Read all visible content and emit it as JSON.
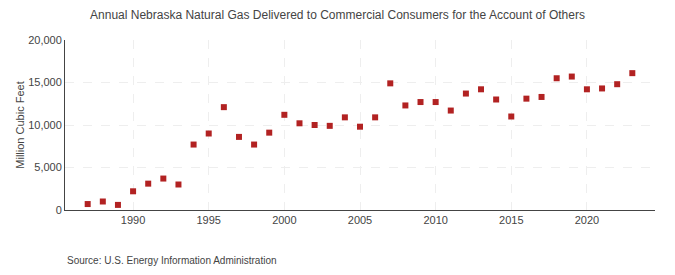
{
  "chart_data": {
    "type": "scatter",
    "title": "Annual Nebraska Natural Gas Delivered to Commercial Consumers for the Account of Others",
    "ylabel": "Million Cubic Feet",
    "annotations": [
      "Source: U.S. Energy Information Administration"
    ],
    "x": [
      1987,
      1988,
      1989,
      1990,
      1991,
      1992,
      1993,
      1994,
      1995,
      1996,
      1997,
      1998,
      1999,
      2000,
      2001,
      2002,
      2003,
      2004,
      2005,
      2006,
      2007,
      2008,
      2009,
      2010,
      2011,
      2012,
      2013,
      2014,
      2015,
      2016,
      2017,
      2018,
      2019,
      2020,
      2021,
      2022,
      2023
    ],
    "values": [
      700,
      1000,
      600,
      2200,
      3100,
      3700,
      3000,
      7700,
      9000,
      12100,
      8600,
      7700,
      9100,
      11200,
      10200,
      10000,
      9900,
      10900,
      9800,
      10900,
      14900,
      12300,
      12700,
      12700,
      11700,
      13700,
      14200,
      13000,
      11000,
      13100,
      13300,
      15500,
      15700,
      14200,
      14300,
      14800,
      16100
    ],
    "color": "#b22222",
    "marker": "square",
    "xlim": [
      1985.5,
      2024.5
    ],
    "xticks": [
      1990,
      1995,
      2000,
      2005,
      2010,
      2015,
      2020
    ],
    "ylim": [
      0,
      20000
    ],
    "yticks": [
      0,
      {
        "value": 5000,
        "label": "5,000"
      },
      {
        "value": 10000,
        "label": "10,000"
      },
      {
        "value": 15000,
        "label": "15,000"
      },
      {
        "value": 20000,
        "label": "20,000"
      }
    ],
    "grid": true
  }
}
